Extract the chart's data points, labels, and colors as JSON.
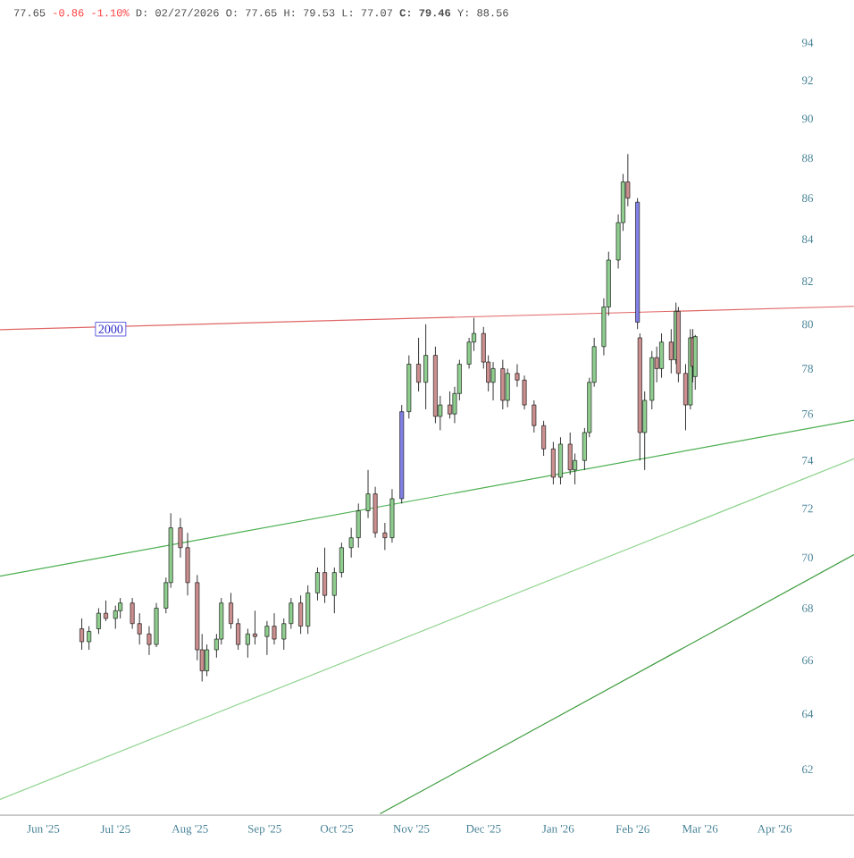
{
  "chart_data": {
    "type": "candlestick",
    "annotations": [
      "77.65",
      "-0.86 -1.10%",
      "D: 02/27/2026 O: 77.65 H: 79.53 L: 77.07 **C: 79.46** Y: 88.56",
      {
        "text": "2000",
        "x": "2025-06-29",
        "y": 79.8
      }
    ],
    "x": [
      "2025-06-17",
      "2025-06-20",
      "2025-06-24",
      "2025-06-27",
      "2025-07-01",
      "2025-07-03",
      "2025-07-08",
      "2025-07-11",
      "2025-07-15",
      "2025-07-18",
      "2025-07-22",
      "2025-07-24",
      "2025-07-28",
      "2025-07-31",
      "2025-08-04",
      "2025-08-06",
      "2025-08-08",
      "2025-08-12",
      "2025-08-14",
      "2025-08-18",
      "2025-08-21",
      "2025-08-25",
      "2025-08-28",
      "2025-09-02",
      "2025-09-05",
      "2025-09-09",
      "2025-09-12",
      "2025-09-16",
      "2025-09-19",
      "2025-09-23",
      "2025-09-26",
      "2025-09-30",
      "2025-10-03",
      "2025-10-07",
      "2025-10-10",
      "2025-10-14",
      "2025-10-17",
      "2025-10-21",
      "2025-10-24",
      "2025-10-28",
      "2025-10-31",
      "2025-11-04",
      "2025-11-07",
      "2025-11-11",
      "2025-11-13",
      "2025-11-17",
      "2025-11-19",
      "2025-11-21",
      "2025-11-25",
      "2025-11-27",
      "2025-12-01",
      "2025-12-03",
      "2025-12-05",
      "2025-12-09",
      "2025-12-11",
      "2025-12-15",
      "2025-12-18",
      "2025-12-22",
      "2025-12-26",
      "2025-12-30",
      "2026-01-02",
      "2026-01-06",
      "2026-01-08",
      "2026-01-12",
      "2026-01-14",
      "2026-01-16",
      "2026-01-20",
      "2026-01-22",
      "2026-01-26",
      "2026-01-28",
      "2026-01-30",
      "2026-02-03",
      "2026-02-04",
      "2026-02-06",
      "2026-02-09",
      "2026-02-11",
      "2026-02-13",
      "2026-02-17",
      "2026-02-19",
      "2026-02-20",
      "2026-02-23",
      "2026-02-25",
      "2026-02-26",
      "2026-02-27"
    ],
    "ohlc": [
      [
        67.2,
        67.6,
        66.4,
        66.7
      ],
      [
        66.7,
        67.3,
        66.4,
        67.1
      ],
      [
        67.2,
        68.0,
        67.0,
        67.8
      ],
      [
        67.8,
        68.3,
        67.5,
        67.6
      ],
      [
        67.6,
        68.1,
        67.2,
        67.9
      ],
      [
        67.9,
        68.4,
        67.6,
        68.2
      ],
      [
        68.2,
        68.4,
        67.2,
        67.4
      ],
      [
        67.4,
        67.8,
        66.6,
        67.0
      ],
      [
        67.0,
        67.3,
        66.2,
        66.6
      ],
      [
        66.6,
        68.2,
        66.5,
        68.0
      ],
      [
        68.0,
        69.2,
        67.8,
        69.0
      ],
      [
        69.0,
        71.8,
        68.8,
        71.2
      ],
      [
        71.2,
        71.6,
        70.0,
        70.4
      ],
      [
        70.4,
        71.0,
        68.5,
        69.0
      ],
      [
        69.0,
        69.3,
        66.0,
        66.4
      ],
      [
        66.4,
        67.0,
        65.2,
        65.6
      ],
      [
        65.6,
        66.6,
        65.4,
        66.4
      ],
      [
        66.4,
        67.0,
        66.1,
        66.8
      ],
      [
        66.8,
        68.4,
        66.6,
        68.2
      ],
      [
        68.2,
        68.6,
        67.2,
        67.4
      ],
      [
        67.4,
        67.6,
        66.4,
        66.6
      ],
      [
        66.6,
        67.2,
        66.1,
        67.0
      ],
      [
        67.0,
        67.9,
        66.6,
        66.9
      ],
      [
        66.9,
        67.5,
        66.2,
        67.3
      ],
      [
        67.3,
        67.8,
        66.6,
        66.8
      ],
      [
        66.8,
        67.6,
        66.4,
        67.4
      ],
      [
        67.4,
        68.4,
        67.2,
        68.2
      ],
      [
        68.2,
        68.5,
        67.0,
        67.3
      ],
      [
        67.3,
        68.9,
        67.0,
        68.6
      ],
      [
        68.6,
        69.6,
        68.3,
        69.4
      ],
      [
        69.4,
        70.4,
        68.2,
        68.5
      ],
      [
        68.5,
        69.6,
        67.8,
        69.4
      ],
      [
        69.4,
        70.6,
        69.2,
        70.4
      ],
      [
        70.4,
        71.2,
        70.0,
        70.8
      ],
      [
        70.8,
        72.2,
        70.4,
        71.9
      ],
      [
        71.9,
        73.6,
        71.6,
        72.6
      ],
      [
        72.6,
        72.9,
        70.8,
        71.0
      ],
      [
        71.0,
        71.4,
        70.3,
        70.8
      ],
      [
        70.8,
        72.8,
        70.6,
        72.4
      ],
      [
        72.4,
        76.4,
        72.2,
        76.1
      ],
      [
        76.1,
        78.6,
        75.8,
        78.2
      ],
      [
        78.2,
        79.4,
        77.0,
        77.4
      ],
      [
        77.4,
        80.0,
        76.2,
        78.6
      ],
      [
        78.6,
        79.0,
        75.6,
        75.9
      ],
      [
        75.9,
        76.8,
        75.3,
        76.4
      ],
      [
        76.4,
        77.0,
        75.8,
        76.0
      ],
      [
        76.0,
        77.2,
        75.6,
        76.9
      ],
      [
        76.9,
        78.4,
        76.6,
        78.2
      ],
      [
        78.2,
        79.4,
        78.0,
        79.2
      ],
      [
        79.2,
        80.3,
        78.8,
        79.6
      ],
      [
        79.6,
        79.9,
        78.0,
        78.3
      ],
      [
        78.3,
        78.6,
        77.0,
        77.4
      ],
      [
        77.4,
        78.3,
        76.6,
        78.0
      ],
      [
        78.0,
        78.4,
        76.2,
        76.6
      ],
      [
        76.6,
        78.0,
        76.3,
        77.8
      ],
      [
        77.8,
        78.2,
        77.2,
        77.5
      ],
      [
        77.5,
        77.7,
        76.2,
        76.4
      ],
      [
        76.4,
        76.6,
        75.2,
        75.5
      ],
      [
        75.5,
        75.7,
        74.2,
        74.5
      ],
      [
        74.5,
        74.8,
        73.0,
        73.3
      ],
      [
        73.3,
        75.0,
        73.0,
        74.7
      ],
      [
        74.7,
        75.2,
        73.4,
        73.6
      ],
      [
        73.6,
        74.3,
        73.0,
        74.0
      ],
      [
        74.0,
        75.4,
        73.6,
        75.2
      ],
      [
        75.2,
        77.6,
        75.0,
        77.4
      ],
      [
        77.4,
        79.4,
        77.2,
        79.0
      ],
      [
        79.0,
        81.2,
        78.6,
        80.8
      ],
      [
        80.8,
        83.4,
        80.4,
        83.0
      ],
      [
        83.0,
        85.2,
        82.6,
        84.8
      ],
      [
        84.8,
        87.2,
        84.4,
        86.8
      ],
      [
        86.8,
        88.2,
        85.6,
        86.0
      ],
      [
        85.8,
        86.0,
        79.8,
        80.1
      ],
      [
        79.4,
        79.6,
        74.0,
        75.2
      ],
      [
        75.2,
        77.0,
        73.6,
        76.6
      ],
      [
        76.6,
        78.8,
        76.2,
        78.5
      ],
      [
        78.5,
        79.0,
        77.4,
        78.0
      ],
      [
        78.0,
        79.6,
        77.6,
        79.2
      ],
      [
        79.2,
        79.8,
        77.8,
        78.4
      ],
      [
        78.4,
        81.0,
        78.2,
        80.6
      ],
      [
        80.6,
        80.8,
        77.4,
        77.8
      ],
      [
        77.8,
        78.2,
        75.3,
        76.4
      ],
      [
        76.4,
        79.8,
        76.2,
        79.4
      ],
      [
        79.4,
        79.8,
        77.4,
        78.1
      ],
      [
        77.65,
        79.53,
        77.07,
        79.46
      ]
    ],
    "colors": [
      "#cc8f8f",
      "#8fce8f",
      "#8fce8f",
      "#cc8f8f",
      "#8fce8f",
      "#8fce8f",
      "#cc8f8f",
      "#cc8f8f",
      "#cc8f8f",
      "#8fce8f",
      "#8fce8f",
      "#8fce8f",
      "#cc8f8f",
      "#cc8f8f",
      "#cc8f8f",
      "#cc8f8f",
      "#8fce8f",
      "#8fce8f",
      "#8fce8f",
      "#cc8f8f",
      "#cc8f8f",
      "#8fce8f",
      "#cc8f8f",
      "#8fce8f",
      "#cc8f8f",
      "#8fce8f",
      "#8fce8f",
      "#cc8f8f",
      "#8fce8f",
      "#8fce8f",
      "#cc8f8f",
      "#8fce8f",
      "#8fce8f",
      "#8fce8f",
      "#8fce8f",
      "#8fce8f",
      "#cc8f8f",
      "#cc8f8f",
      "#8fce8f",
      "#8080e6",
      "#8fce8f",
      "#cc8f8f",
      "#8fce8f",
      "#cc8f8f",
      "#8fce8f",
      "#cc8f8f",
      "#8fce8f",
      "#8fce8f",
      "#8fce8f",
      "#8fce8f",
      "#cc8f8f",
      "#cc8f8f",
      "#8fce8f",
      "#cc8f8f",
      "#8fce8f",
      "#cc8f8f",
      "#cc8f8f",
      "#cc8f8f",
      "#cc8f8f",
      "#cc8f8f",
      "#8fce8f",
      "#cc8f8f",
      "#8fce8f",
      "#8fce8f",
      "#8fce8f",
      "#8fce8f",
      "#8fce8f",
      "#8fce8f",
      "#8fce8f",
      "#8fce8f",
      "#cc8f8f",
      "#8080e6",
      "#cc8f8f",
      "#8fce8f",
      "#8fce8f",
      "#cc8f8f",
      "#8fce8f",
      "#cc8f8f",
      "#8fce8f",
      "#cc8f8f",
      "#cc8f8f",
      "#8fce8f",
      "#cc8f8f",
      "#8fce8f"
    ],
    "series": [
      {
        "type": "line",
        "color": "#e06666",
        "x": [
          "2025-05-14",
          "2026-05-04"
        ],
        "values": [
          79.77,
          80.83
        ]
      },
      {
        "type": "line",
        "color": "#4caf50",
        "x": [
          "2025-05-14",
          "2026-05-04"
        ],
        "values": [
          69.26,
          75.74
        ]
      },
      {
        "type": "line",
        "color": "#8fd48f",
        "x": [
          "2025-05-14",
          "2026-05-04"
        ],
        "values": [
          60.94,
          74.07
        ]
      },
      {
        "type": "line",
        "color": "#3a9a3a",
        "x": [
          "2025-10-19",
          "2026-05-04"
        ],
        "values": [
          60.44,
          70.11
        ]
      }
    ],
    "log": true,
    "xlim": [
      "2025-05-14",
      "2026-05-04"
    ],
    "ylim": [
      60.4,
      94
    ],
    "xticks": [
      {
        "value": "2025-06-01",
        "label": "Jun '25"
      },
      {
        "value": "2025-07-01",
        "label": "Jul '25"
      },
      {
        "value": "2025-08-01",
        "label": "Aug '25"
      },
      {
        "value": "2025-09-01",
        "label": "Sep '25"
      },
      {
        "value": "2025-10-01",
        "label": "Oct '25"
      },
      {
        "value": "2025-11-01",
        "label": "Nov '25"
      },
      {
        "value": "2025-12-01",
        "label": "Dec '25"
      },
      {
        "value": "2026-01-01",
        "label": "Jan '26"
      },
      {
        "value": "2026-02-01",
        "label": "Feb '26"
      },
      {
        "value": "2026-03-01",
        "label": "Mar '26"
      },
      {
        "value": "2026-04-01",
        "label": "Apr '26"
      }
    ],
    "yticks": [
      62,
      64,
      66,
      68,
      70,
      72,
      74,
      76,
      78,
      80,
      82,
      84,
      86,
      88,
      90,
      92,
      94
    ]
  }
}
